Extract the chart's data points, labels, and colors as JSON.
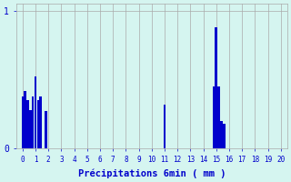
{
  "title": "",
  "xlabel": "Précipitations 6min ( mm )",
  "ylabel": "",
  "background_color": "#d5f5f0",
  "bar_color": "#0000cc",
  "grid_color": "#aaaaaa",
  "xlim": [
    -0.5,
    20.5
  ],
  "ylim": [
    0,
    1.05
  ],
  "yticks": [
    0,
    1
  ],
  "xtick_labels": [
    "0",
    "1",
    "2",
    "3",
    "4",
    "5",
    "6",
    "7",
    "8",
    "9",
    "10",
    "11",
    "12",
    "13",
    "14",
    "15",
    "16",
    "17",
    "18",
    "19",
    "20"
  ],
  "bar_data": [
    [
      0.0,
      0.38
    ],
    [
      0.2,
      0.42
    ],
    [
      0.4,
      0.35
    ],
    [
      0.6,
      0.28
    ],
    [
      0.8,
      0.38
    ],
    [
      1.0,
      0.52
    ],
    [
      1.2,
      0.35
    ],
    [
      1.4,
      0.38
    ],
    [
      1.8,
      0.27
    ],
    [
      11.0,
      0.32
    ],
    [
      14.8,
      0.45
    ],
    [
      15.0,
      0.88
    ],
    [
      15.2,
      0.45
    ],
    [
      15.4,
      0.2
    ],
    [
      15.6,
      0.18
    ]
  ],
  "bar_width": 0.18,
  "figsize": [
    3.2,
    2.0
  ],
  "dpi": 100
}
